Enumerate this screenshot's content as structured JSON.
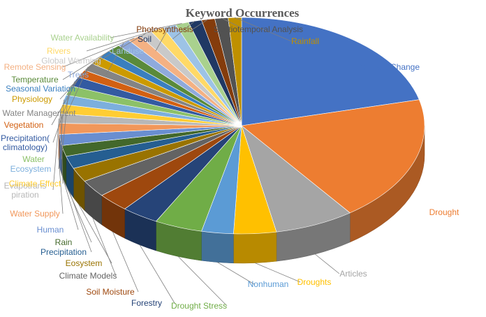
{
  "chart_data": {
    "type": "pie",
    "style": "3d-exploded",
    "title": "Keyword Occurrences",
    "slices": [
      {
        "label": "Climate Change",
        "value": 90,
        "color": "#4472c4"
      },
      {
        "label": "Drought",
        "value": 80,
        "color": "#ed7d31"
      },
      {
        "label": "Articles",
        "value": 30,
        "color": "#a5a5a5"
      },
      {
        "label": "Droughts",
        "value": 16,
        "color": "#ffc000"
      },
      {
        "label": "Nonhuman",
        "value": 12,
        "color": "#5b9bd5"
      },
      {
        "label": "Drought Stress",
        "value": 18,
        "color": "#70ad47"
      },
      {
        "label": "Forestry",
        "value": 14,
        "color": "#264478"
      },
      {
        "label": "Soil Moisture",
        "value": 12,
        "color": "#9e480e"
      },
      {
        "label": "Climate Models",
        "value": 11,
        "color": "#636363"
      },
      {
        "label": "Eosystem",
        "value": 9,
        "color": "#997300"
      },
      {
        "label": "Precipitation",
        "value": 8,
        "color": "#255e91"
      },
      {
        "label": "Rain",
        "value": 7,
        "color": "#43682b"
      },
      {
        "label": "Human",
        "value": 7,
        "color": "#698ed0"
      },
      {
        "label": "Water Supply",
        "value": 7,
        "color": "#f1975a"
      },
      {
        "label": "Evapotranspiration",
        "value": 6,
        "color": "#b7b7b7"
      },
      {
        "label": "Climate Effect",
        "value": 6,
        "color": "#ffcd33"
      },
      {
        "label": "Ecosystem",
        "value": 6,
        "color": "#7cafdd"
      },
      {
        "label": "Water",
        "value": 6,
        "color": "#8cc168"
      },
      {
        "label": "Precipitation( climatology)",
        "value": 6,
        "color": "#335aa1"
      },
      {
        "label": "Vegetation",
        "value": 5,
        "color": "#d26012"
      },
      {
        "label": "Water Management",
        "value": 5,
        "color": "#848484"
      },
      {
        "label": "Physiology",
        "value": 5,
        "color": "#cc9a00"
      },
      {
        "label": "Seasonal Variation",
        "value": 5,
        "color": "#3a7fbf"
      },
      {
        "label": "Temperature",
        "value": 5,
        "color": "#5a8a3a"
      },
      {
        "label": "Trees",
        "value": 5,
        "color": "#8faadc"
      },
      {
        "label": "Remote Sensing",
        "value": 5,
        "color": "#f4b183"
      },
      {
        "label": "Global Warming",
        "value": 5,
        "color": "#c9c9c9"
      },
      {
        "label": "Rivers",
        "value": 5,
        "color": "#ffd966"
      },
      {
        "label": "Landuse",
        "value": 5,
        "color": "#9dc3e6"
      },
      {
        "label": "Water Availability",
        "value": 5,
        "color": "#a9d18e"
      },
      {
        "label": "Soil",
        "value": 5,
        "color": "#203864"
      },
      {
        "label": "Photosynthesis",
        "value": 5,
        "color": "#843c0c"
      },
      {
        "label": "Spatiotemporal Analysis",
        "value": 5,
        "color": "#525252"
      },
      {
        "label": "Rainfall",
        "value": 5,
        "color": "#bf9000"
      }
    ]
  }
}
